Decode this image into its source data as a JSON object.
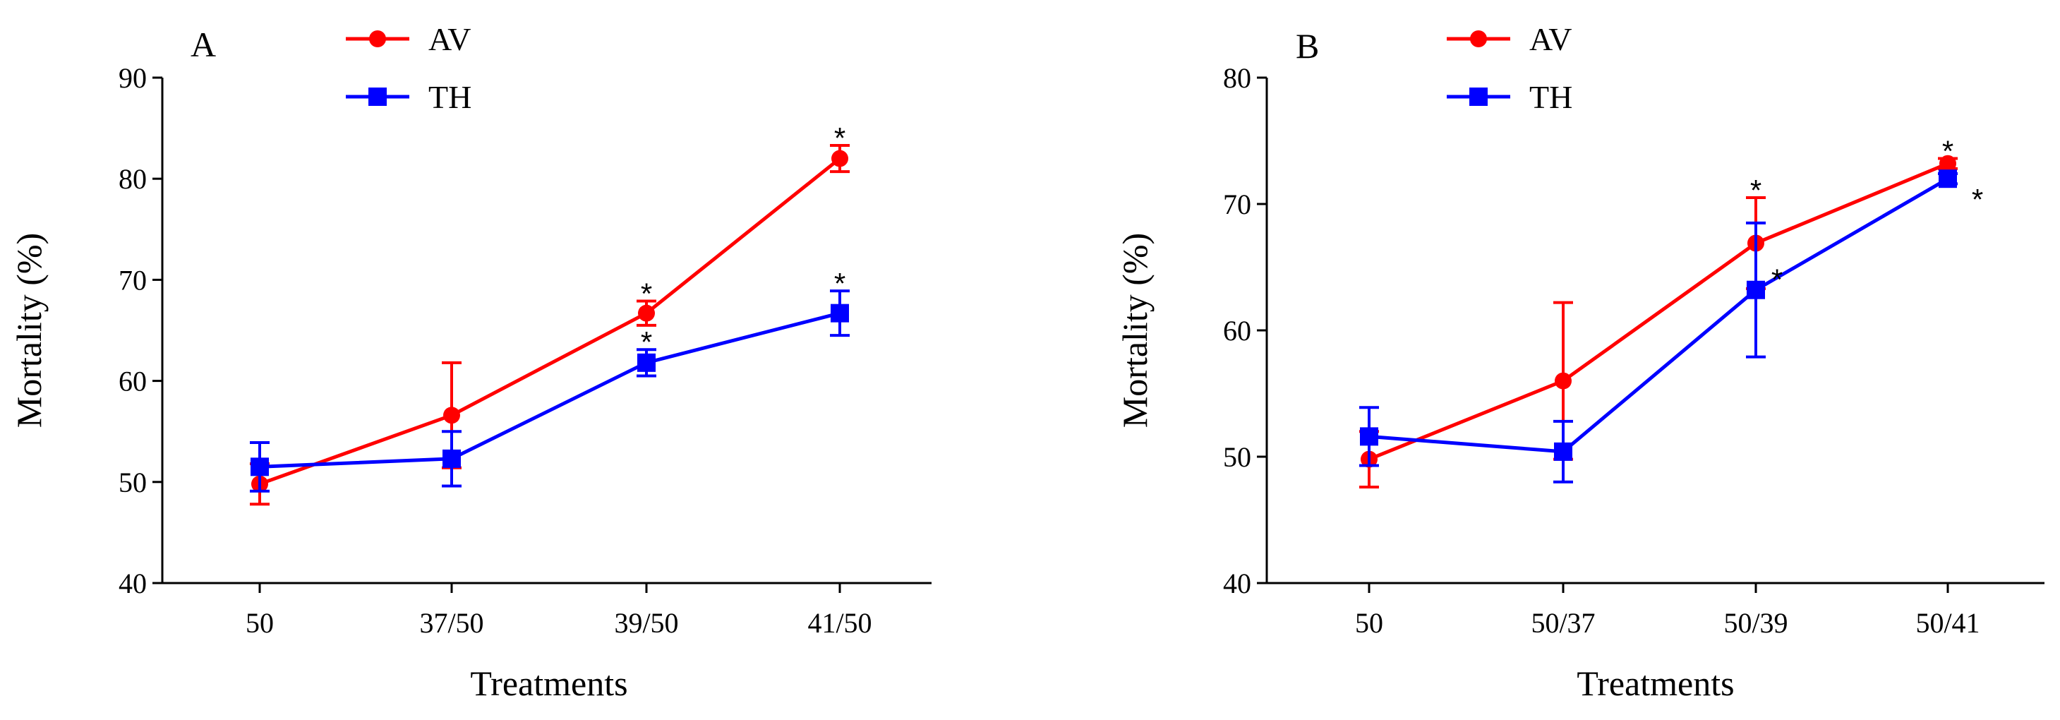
{
  "chart_data": [
    {
      "type": "line",
      "panel": "A",
      "xlabel": "Treatments",
      "ylabel": "Mortality (%)",
      "ylim": [
        40,
        90
      ],
      "yticks": [
        40,
        50,
        60,
        70,
        80,
        90
      ],
      "categories": [
        "50",
        "37/50",
        "39/50",
        "41/50"
      ],
      "series": [
        {
          "name": "AV",
          "color": "#ff0000",
          "marker": "circle",
          "values": [
            49.8,
            56.6,
            66.7,
            82.0
          ],
          "errors": [
            2.0,
            5.2,
            1.2,
            1.3
          ],
          "significance": [
            "",
            "",
            "*",
            "*"
          ]
        },
        {
          "name": "TH",
          "color": "#0000ff",
          "marker": "square",
          "values": [
            51.5,
            52.3,
            61.8,
            66.7
          ],
          "errors": [
            2.4,
            2.7,
            1.3,
            2.2
          ],
          "significance": [
            "",
            "",
            "*",
            "*"
          ]
        }
      ]
    },
    {
      "type": "line",
      "panel": "B",
      "xlabel": "Treatments",
      "ylabel": "Mortality (%)",
      "ylim": [
        40,
        80
      ],
      "yticks": [
        40,
        50,
        60,
        70,
        80
      ],
      "categories": [
        "50",
        "50/37",
        "50/39",
        "50/41"
      ],
      "series": [
        {
          "name": "AV",
          "color": "#ff0000",
          "marker": "circle",
          "values": [
            49.8,
            56.0,
            66.9,
            73.2
          ],
          "errors": [
            2.2,
            6.2,
            3.6,
            0.4
          ],
          "significance": [
            "",
            "",
            "*",
            "*"
          ]
        },
        {
          "name": "TH",
          "color": "#0000ff",
          "marker": "square",
          "values": [
            51.6,
            50.4,
            63.2,
            72.0
          ],
          "errors": [
            2.3,
            2.4,
            5.3,
            0.4
          ],
          "significance": [
            "",
            "",
            "*",
            "*"
          ]
        }
      ]
    }
  ]
}
